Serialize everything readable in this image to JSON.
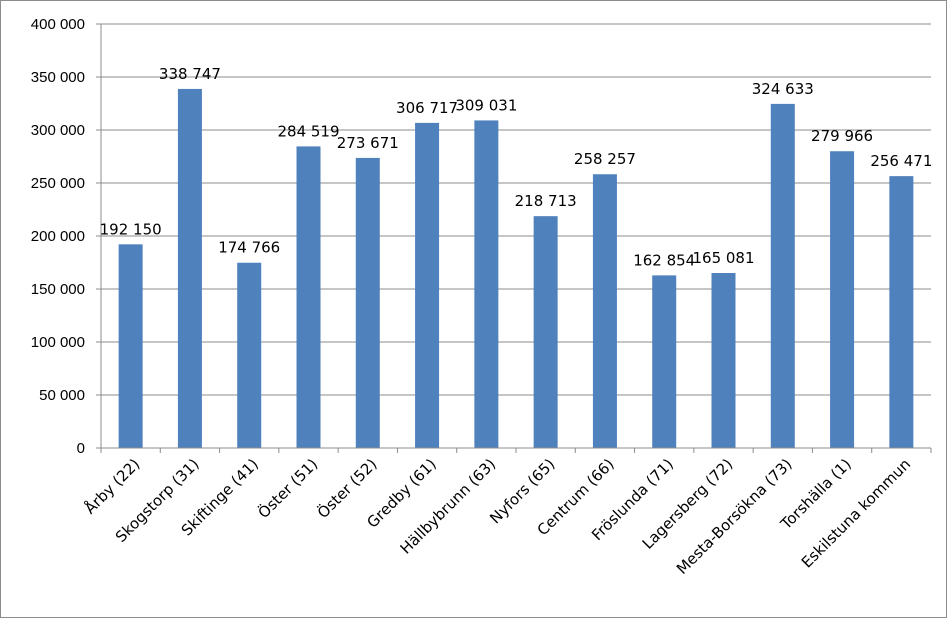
{
  "chart_data": {
    "type": "bar",
    "title": "",
    "xlabel": "",
    "ylabel": "",
    "ylim": [
      0,
      400000
    ],
    "yticks": [
      0,
      50000,
      100000,
      150000,
      200000,
      250000,
      300000,
      350000,
      400000
    ],
    "ytick_labels": [
      "0",
      "50 000",
      "100 000",
      "150 000",
      "200 000",
      "250 000",
      "300 000",
      "350 000",
      "400 000"
    ],
    "grid": "horizontal",
    "legend": "none",
    "bar_color": "#4F81BD",
    "categories": [
      "Årby (22)",
      "Skogstorp (31)",
      "Skiftinge (41)",
      "Öster (51)",
      "Öster (52)",
      "Gredby (61)",
      "Hällbybrunn (63)",
      "Nyfors (65)",
      "Centrum (66)",
      "Fröslunda (71)",
      "Lagersberg (72)",
      "Mesta-Borsökna (73)",
      "Torshälla (1)",
      "Eskilstuna kommun"
    ],
    "values": [
      192150,
      338747,
      174766,
      284519,
      273671,
      306717,
      309031,
      218713,
      258257,
      162854,
      165081,
      324633,
      279966,
      256471
    ],
    "value_labels": [
      "192 150",
      "338 747",
      "174 766",
      "284 519",
      "273 671",
      "306 717",
      "309 031",
      "218 713",
      "258 257",
      "162 854",
      "165 081",
      "324 633",
      "279 966",
      "256 471"
    ]
  }
}
